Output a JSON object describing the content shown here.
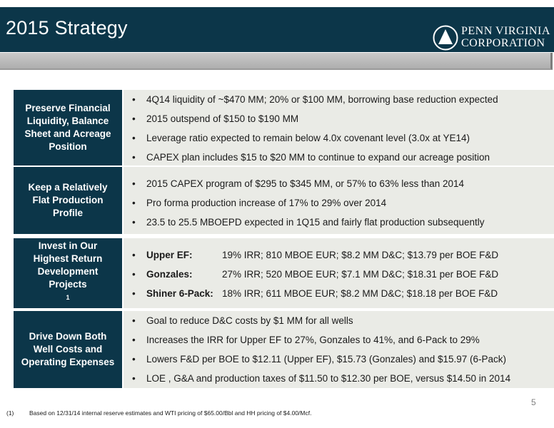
{
  "header": {
    "title": "2015 Strategy",
    "logo_line1": "PENN VIRGINIA",
    "logo_line2": "CORPORATION"
  },
  "rows": [
    {
      "label": "Preserve Financial Liquidity, Balance Sheet and Acreage Position",
      "bullets": [
        "4Q14 liquidity of ~$470 MM; 20% or $100 MM, borrowing base reduction expected",
        "2015 outspend of $150 to $190 MM",
        "Leverage ratio expected to remain below 4.0x covenant level (3.0x at YE14)",
        "CAPEX plan includes $15 to $20 MM to continue to expand our acreage position"
      ]
    },
    {
      "label": "Keep a Relatively Flat Production Profile",
      "bullets": [
        "2015 CAPEX program of $295 to $345 MM, or 57% to 63% less than 2014",
        "Pro forma production increase of 17% to 29% over 2014",
        "23.5 to 25.5 MBOEPD expected in 1Q15 and fairly flat production subsequently"
      ]
    },
    {
      "label": "Invest in Our Highest Return Development Projects",
      "label_sup": "1",
      "bullets": [
        {
          "name": "Upper EF:",
          "text": "19% IRR; 810 MBOE EUR; $8.2 MM D&C;  $13.79 per BOE F&D"
        },
        {
          "name": "Gonzales:",
          "text": "27% IRR; 520 MBOE EUR; $7.1 MM D&C;  $18.31 per BOE F&D"
        },
        {
          "name": "Shiner 6-Pack:",
          "text": "18% IRR; 611 MBOE EUR; $8.2 MM D&C;  $18.18 per BOE F&D"
        }
      ]
    },
    {
      "label": "Drive Down Both Well Costs and Operating Expenses",
      "bullets": [
        "Goal to reduce D&C costs by $1 MM for all wells",
        "Increases the IRR for Upper EF to 27%, Gonzales to 41%, and 6-Pack to 29%",
        "Lowers F&D per BOE to $12.11 (Upper EF), $15.73 (Gonzales) and $15.97 (6-Pack)",
        "LOE , G&A and production taxes of $11.50 to $12.30 per BOE, versus $14.50 in 2014"
      ]
    }
  ],
  "page_number": "5",
  "footnote": {
    "mark": "(1)",
    "text": "Based on 12/31/14 internal reserve estimates and WTI pricing of $65.00/Bbl and HH pricing of $4.00/Mcf."
  }
}
